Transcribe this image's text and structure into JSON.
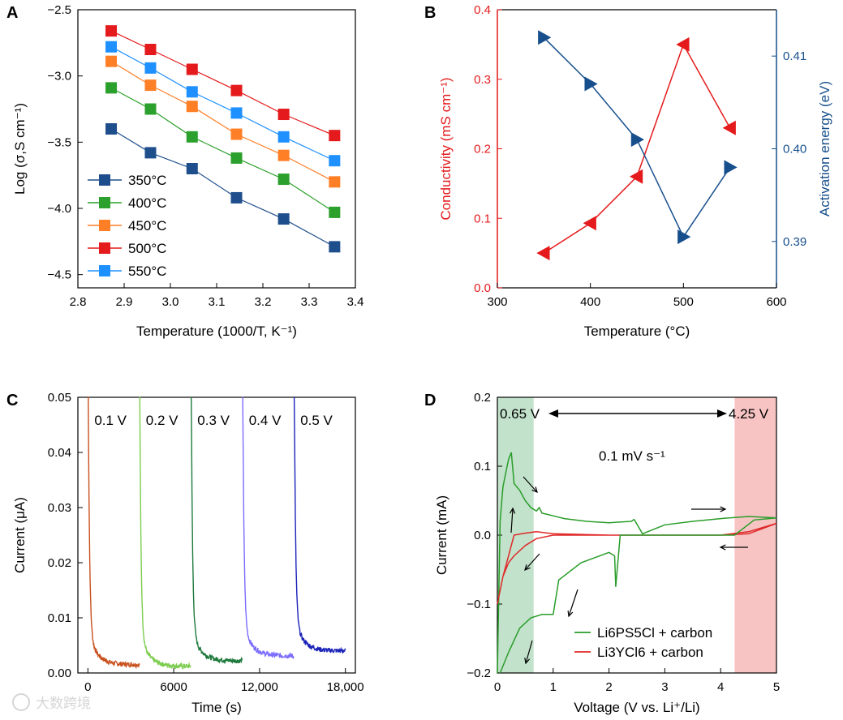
{
  "chart_data": [
    {
      "panel": "A",
      "type": "line",
      "xlabel": "Temperature (1000/T, K⁻¹)",
      "ylabel": "Log (σ,S cm⁻¹)",
      "xlim": [
        2.8,
        3.4
      ],
      "ylim": [
        -4.6,
        -2.5
      ],
      "xticks": [
        "2.8",
        "2.9",
        "3.0",
        "3.1",
        "3.2",
        "3.3",
        "3.4"
      ],
      "yticks": [
        "−2.5",
        "−3.0",
        "−3.5",
        "−4.0",
        "−4.5"
      ],
      "x": [
        2.872,
        2.957,
        3.047,
        3.143,
        3.245,
        3.355
      ],
      "legend_position": "bottom-left",
      "series": [
        {
          "name": "350°C",
          "color": "#1f4e8c",
          "values": [
            -3.4,
            -3.58,
            -3.7,
            -3.92,
            -4.08,
            -4.29
          ]
        },
        {
          "name": "400°C",
          "color": "#2ca02c",
          "values": [
            -3.09,
            -3.25,
            -3.46,
            -3.62,
            -3.78,
            -4.03
          ]
        },
        {
          "name": "450°C",
          "color": "#ff7f27",
          "values": [
            -2.89,
            -3.07,
            -3.23,
            -3.44,
            -3.6,
            -3.8
          ]
        },
        {
          "name": "500°C",
          "color": "#e41a1c",
          "values": [
            -2.66,
            -2.8,
            -2.95,
            -3.11,
            -3.29,
            -3.45
          ]
        },
        {
          "name": "550°C",
          "color": "#1e90ff",
          "values": [
            -2.78,
            -2.94,
            -3.12,
            -3.28,
            -3.46,
            -3.64
          ]
        }
      ]
    },
    {
      "panel": "B",
      "type": "line",
      "xlabel": "Temperature (°C)",
      "ylabel": "Conductivity (mS cm⁻¹)",
      "ylabel_right": "Activation energy (eV)",
      "xlim": [
        300,
        600
      ],
      "ylim": [
        0,
        0.4
      ],
      "ylim_right": [
        0.385,
        0.415
      ],
      "xticks": [
        "300",
        "400",
        "500",
        "600"
      ],
      "yticks": [
        "0.0",
        "0.1",
        "0.2",
        "0.3",
        "0.4"
      ],
      "yticks_right": [
        "0.39",
        "0.40",
        "0.41"
      ],
      "x": [
        350,
        400,
        450,
        500,
        550
      ],
      "series": [
        {
          "name": "Conductivity",
          "color": "#e41a1c",
          "axis": "left",
          "marker": "triangle-left",
          "values": [
            0.05,
            0.093,
            0.16,
            0.35,
            0.23
          ]
        },
        {
          "name": "Activation energy",
          "color": "#174f8c",
          "axis": "right",
          "marker": "triangle-right",
          "values": [
            0.412,
            0.407,
            0.401,
            0.3905,
            0.398
          ]
        }
      ]
    },
    {
      "panel": "C",
      "type": "line",
      "xlabel": "Time (s)",
      "ylabel": "Current (μA)",
      "xlim": [
        -700,
        18700
      ],
      "ylim": [
        0,
        0.05
      ],
      "xticks": [
        "0",
        "6000",
        "12,000",
        "18,000"
      ],
      "yticks": [
        "0.00",
        "0.01",
        "0.02",
        "0.03",
        "0.04",
        "0.05"
      ],
      "series": [
        {
          "name": "0.1 V",
          "color": "#c8501e",
          "start": 0,
          "end": 3600,
          "tail": 0.0015
        },
        {
          "name": "0.2 V",
          "color": "#7ccc4e",
          "start": 3600,
          "end": 7200,
          "tail": 0.0012
        },
        {
          "name": "0.3 V",
          "color": "#1e7a3c",
          "start": 7200,
          "end": 10800,
          "tail": 0.0022
        },
        {
          "name": "0.4 V",
          "color": "#7b6cff",
          "start": 10800,
          "end": 14400,
          "tail": 0.0031
        },
        {
          "name": "0.5 V",
          "color": "#1a22b8",
          "start": 14400,
          "end": 18000,
          "tail": 0.004
        }
      ]
    },
    {
      "panel": "D",
      "type": "line",
      "xlabel": "Voltage (V vs. Li⁺/Li)",
      "ylabel": "Current (mA)",
      "xlim": [
        0,
        5
      ],
      "ylim": [
        -0.2,
        0.2
      ],
      "xticks": [
        "0",
        "1",
        "2",
        "3",
        "4",
        "5"
      ],
      "yticks": [
        "−0.2",
        "−0.1",
        "0.0",
        "0.1",
        "0.2"
      ],
      "annotations": [
        "0.65 V",
        "4.25 V",
        "0.1 mV s⁻¹"
      ],
      "legend_position": "bottom-right",
      "shaded_regions": [
        {
          "from": 0,
          "to": 0.65,
          "color": "#a8d5b5"
        },
        {
          "from": 4.25,
          "to": 5,
          "color": "#f4a9a9"
        }
      ],
      "series": [
        {
          "name": "Li6PS5Cl + carbon",
          "color": "#2a9d2a",
          "x": [
            0,
            0.05,
            0.1,
            0.15,
            0.2,
            0.25,
            0.3,
            0.4,
            0.5,
            0.6,
            0.7,
            0.75,
            0.8,
            0.9,
            1.0,
            1.2,
            1.6,
            2.0,
            2.4,
            2.45
          ],
          "values": [
            -0.2,
            0.02,
            0.07,
            0.09,
            0.11,
            0.12,
            0.075,
            0.065,
            0.05,
            0.04,
            0.035,
            0.04,
            0.032,
            0.03,
            0.028,
            0.024,
            0.02,
            0.018,
            0.02,
            0.023
          ]
        },
        {
          "name": "Li3YCl6 + carbon",
          "color": "#e02828",
          "x": [
            0,
            0.05,
            0.1,
            0.2,
            0.3,
            0.5,
            0.7,
            1.0,
            2.0,
            3.0,
            4.0,
            4.5,
            5.0,
            4.5,
            4.0,
            3.0,
            2.0,
            1.0,
            0.7,
            0.5,
            0.3,
            0.1,
            0.0
          ],
          "values": [
            -0.1,
            -0.08,
            -0.06,
            -0.04,
            -0.03,
            -0.015,
            -0.005,
            0.0,
            0.0,
            0.0,
            0.0,
            0.005,
            0.017,
            0.002,
            0.0,
            0.0,
            0.0,
            0.002,
            0.005,
            0.003,
            0.0,
            -0.06,
            -0.1
          ]
        }
      ]
    }
  ],
  "panels": {
    "A": "A",
    "B": "B",
    "C": "C",
    "D": "D"
  },
  "watermark": "大数跨境"
}
